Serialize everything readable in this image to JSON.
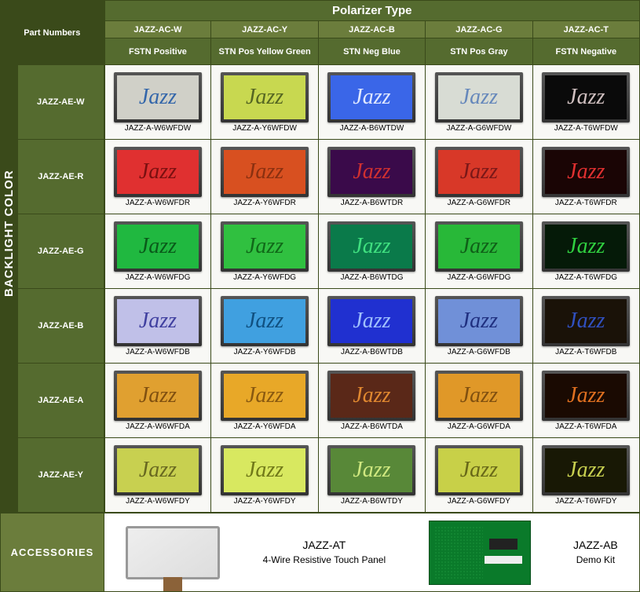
{
  "header": {
    "main": "Polarizer Type",
    "part_numbers": "Part Numbers",
    "backlight_side": "BACKLIGHT COLOR",
    "columns": [
      {
        "code": "JAZZ-AC-W",
        "desc": "FSTN Positive"
      },
      {
        "code": "JAZZ-AC-Y",
        "desc": "STN Pos Yellow Green"
      },
      {
        "code": "JAZZ-AC-B",
        "desc": "STN Neg Blue"
      },
      {
        "code": "JAZZ-AC-G",
        "desc": "STN Pos Gray"
      },
      {
        "code": "JAZZ-AC-T",
        "desc": "FSTN Negative"
      }
    ]
  },
  "rows": [
    {
      "label": "JAZZ-AE-W",
      "cells": [
        {
          "part": "JAZZ-A-W6WFDW",
          "bg": "#d0d0c8",
          "fg": "#3366aa"
        },
        {
          "part": "JAZZ-A-Y6WFDW",
          "bg": "#c8d850",
          "fg": "#556622"
        },
        {
          "part": "JAZZ-A-B6WTDW",
          "bg": "#3a66e8",
          "fg": "#e0e8ff"
        },
        {
          "part": "JAZZ-A-G6WFDW",
          "bg": "#d8dcd4",
          "fg": "#6688bb"
        },
        {
          "part": "JAZZ-A-T6WFDW",
          "bg": "#0a0a0a",
          "fg": "#d0c0c0"
        }
      ]
    },
    {
      "label": "JAZZ-AE-R",
      "cells": [
        {
          "part": "JAZZ-A-W6WFDR",
          "bg": "#e03030",
          "fg": "#7a1010"
        },
        {
          "part": "JAZZ-A-Y6WFDR",
          "bg": "#d85020",
          "fg": "#8a3010"
        },
        {
          "part": "JAZZ-A-B6WTDR",
          "bg": "#3a0a4a",
          "fg": "#d03030"
        },
        {
          "part": "JAZZ-A-G6WFDR",
          "bg": "#d83828",
          "fg": "#7a1818"
        },
        {
          "part": "JAZZ-A-T6WFDR",
          "bg": "#1a0505",
          "fg": "#e03030"
        }
      ]
    },
    {
      "label": "JAZZ-AE-G",
      "cells": [
        {
          "part": "JAZZ-A-W6WFDG",
          "bg": "#20b840",
          "fg": "#0a5a1a"
        },
        {
          "part": "JAZZ-A-Y6WFDG",
          "bg": "#30c040",
          "fg": "#106818"
        },
        {
          "part": "JAZZ-A-B6WTDG",
          "bg": "#0a7a4a",
          "fg": "#40e080"
        },
        {
          "part": "JAZZ-A-G6WFDG",
          "bg": "#28b838",
          "fg": "#106018"
        },
        {
          "part": "JAZZ-A-T6WFDG",
          "bg": "#051a08",
          "fg": "#30d040"
        }
      ]
    },
    {
      "label": "JAZZ-AE-B",
      "cells": [
        {
          "part": "JAZZ-A-W6WFDB",
          "bg": "#c0c0e8",
          "fg": "#4040a0"
        },
        {
          "part": "JAZZ-A-Y6WFDB",
          "bg": "#40a0e0",
          "fg": "#105080"
        },
        {
          "part": "JAZZ-A-B6WTDB",
          "bg": "#2030d0",
          "fg": "#a0c0ff"
        },
        {
          "part": "JAZZ-A-G6WFDB",
          "bg": "#7090d8",
          "fg": "#203080"
        },
        {
          "part": "JAZZ-A-T6WFDB",
          "bg": "#1a1208",
          "fg": "#3050c0"
        }
      ]
    },
    {
      "label": "JAZZ-AE-A",
      "cells": [
        {
          "part": "JAZZ-A-W6WFDA",
          "bg": "#e0a030",
          "fg": "#805010"
        },
        {
          "part": "JAZZ-A-Y6WFDA",
          "bg": "#e8a828",
          "fg": "#885810"
        },
        {
          "part": "JAZZ-A-B6WTDA",
          "bg": "#5a2818",
          "fg": "#e08830"
        },
        {
          "part": "JAZZ-A-G6WFDA",
          "bg": "#e09828",
          "fg": "#805010"
        },
        {
          "part": "JAZZ-A-T6WFDA",
          "bg": "#1a0a02",
          "fg": "#e07020"
        }
      ]
    },
    {
      "label": "JAZZ-AE-Y",
      "cells": [
        {
          "part": "JAZZ-A-W6WFDY",
          "bg": "#c8d050",
          "fg": "#686820"
        },
        {
          "part": "JAZZ-A-Y6WFDY",
          "bg": "#d8e860",
          "fg": "#707818"
        },
        {
          "part": "JAZZ-A-B6WTDY",
          "bg": "#588838",
          "fg": "#d0e880"
        },
        {
          "part": "JAZZ-A-G6WFDY",
          "bg": "#c8d048",
          "fg": "#686818"
        },
        {
          "part": "JAZZ-A-T6WFDY",
          "bg": "#181805",
          "fg": "#c8d050"
        }
      ]
    }
  ],
  "accessories": {
    "side_label": "ACCESSORIES",
    "left_title": "JAZZ-AT",
    "left_desc": "4-Wire Resistive Touch Panel",
    "right_title": "JAZZ-AB",
    "right_desc": "Demo Kit"
  },
  "colors": {
    "header_dark": "#3a4a1a",
    "header_med": "#556b2f",
    "header_light": "#6b7d3c"
  }
}
